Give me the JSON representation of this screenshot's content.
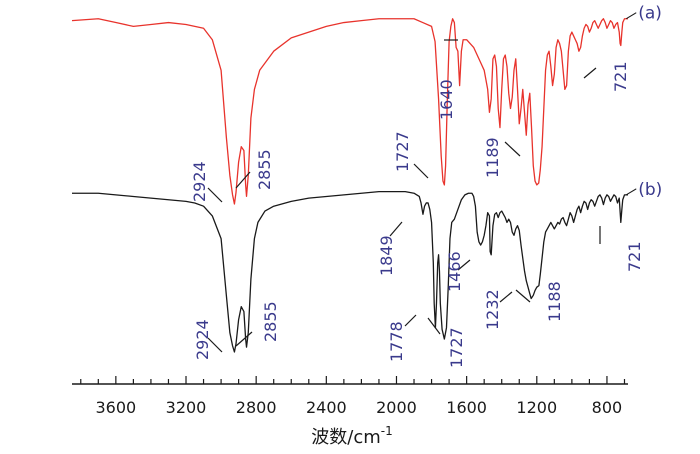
{
  "chart_data": {
    "type": "line",
    "title": "",
    "xlabel": "波数/cm",
    "xlabel_superscript": "-1",
    "ylabel": "",
    "x_reversed": true,
    "xlim": [
      3850,
      680
    ],
    "xticks": [
      3600,
      3200,
      2800,
      2400,
      2000,
      1600,
      1200,
      800
    ],
    "xtick_labels": [
      "3600",
      "3200",
      "2800",
      "2400",
      "2000",
      "1600",
      "1200",
      "800"
    ],
    "grid": false,
    "legend": "none",
    "series": [
      {
        "name": "(a)",
        "color": "#e8332c",
        "points": [
          [
            3850,
            0.96
          ],
          [
            3700,
            0.97
          ],
          [
            3600,
            0.95
          ],
          [
            3500,
            0.93
          ],
          [
            3400,
            0.94
          ],
          [
            3300,
            0.95
          ],
          [
            3200,
            0.94
          ],
          [
            3100,
            0.92
          ],
          [
            3050,
            0.86
          ],
          [
            3000,
            0.7
          ],
          [
            2970,
            0.35
          ],
          [
            2950,
            0.15
          ],
          [
            2935,
            0.05
          ],
          [
            2924,
            0.0
          ],
          [
            2915,
            0.06
          ],
          [
            2900,
            0.22
          ],
          [
            2885,
            0.3
          ],
          [
            2870,
            0.28
          ],
          [
            2860,
            0.1
          ],
          [
            2855,
            0.04
          ],
          [
            2845,
            0.15
          ],
          [
            2830,
            0.45
          ],
          [
            2810,
            0.6
          ],
          [
            2780,
            0.7
          ],
          [
            2700,
            0.8
          ],
          [
            2600,
            0.87
          ],
          [
            2500,
            0.9
          ],
          [
            2400,
            0.93
          ],
          [
            2300,
            0.95
          ],
          [
            2200,
            0.96
          ],
          [
            2100,
            0.97
          ],
          [
            2000,
            0.97
          ],
          [
            1900,
            0.97
          ],
          [
            1850,
            0.95
          ],
          [
            1800,
            0.93
          ],
          [
            1780,
            0.85
          ],
          [
            1760,
            0.55
          ],
          [
            1745,
            0.25
          ],
          [
            1735,
            0.12
          ],
          [
            1727,
            0.1
          ],
          [
            1720,
            0.2
          ],
          [
            1710,
            0.55
          ],
          [
            1700,
            0.85
          ],
          [
            1690,
            0.93
          ],
          [
            1680,
            0.97
          ],
          [
            1670,
            0.95
          ],
          [
            1660,
            0.82
          ],
          [
            1650,
            0.8
          ],
          [
            1640,
            0.62
          ],
          [
            1630,
            0.8
          ],
          [
            1620,
            0.86
          ],
          [
            1600,
            0.86
          ],
          [
            1580,
            0.84
          ],
          [
            1560,
            0.82
          ],
          [
            1540,
            0.78
          ],
          [
            1520,
            0.74
          ],
          [
            1500,
            0.7
          ],
          [
            1480,
            0.6
          ],
          [
            1470,
            0.48
          ],
          [
            1460,
            0.55
          ],
          [
            1450,
            0.76
          ],
          [
            1440,
            0.78
          ],
          [
            1430,
            0.72
          ],
          [
            1420,
            0.5
          ],
          [
            1410,
            0.4
          ],
          [
            1400,
            0.6
          ],
          [
            1390,
            0.76
          ],
          [
            1380,
            0.78
          ],
          [
            1370,
            0.72
          ],
          [
            1360,
            0.58
          ],
          [
            1350,
            0.5
          ],
          [
            1340,
            0.56
          ],
          [
            1330,
            0.7
          ],
          [
            1320,
            0.76
          ],
          [
            1310,
            0.6
          ],
          [
            1300,
            0.42
          ],
          [
            1290,
            0.5
          ],
          [
            1280,
            0.6
          ],
          [
            1270,
            0.48
          ],
          [
            1260,
            0.36
          ],
          [
            1250,
            0.52
          ],
          [
            1240,
            0.58
          ],
          [
            1230,
            0.4
          ],
          [
            1220,
            0.2
          ],
          [
            1210,
            0.12
          ],
          [
            1200,
            0.1
          ],
          [
            1189,
            0.11
          ],
          [
            1180,
            0.18
          ],
          [
            1170,
            0.3
          ],
          [
            1160,
            0.5
          ],
          [
            1150,
            0.7
          ],
          [
            1140,
            0.78
          ],
          [
            1130,
            0.8
          ],
          [
            1120,
            0.72
          ],
          [
            1110,
            0.62
          ],
          [
            1100,
            0.68
          ],
          [
            1090,
            0.82
          ],
          [
            1080,
            0.86
          ],
          [
            1070,
            0.84
          ],
          [
            1060,
            0.8
          ],
          [
            1050,
            0.7
          ],
          [
            1040,
            0.6
          ],
          [
            1030,
            0.62
          ],
          [
            1020,
            0.8
          ],
          [
            1010,
            0.88
          ],
          [
            1000,
            0.9
          ],
          [
            990,
            0.88
          ],
          [
            980,
            0.86
          ],
          [
            970,
            0.84
          ],
          [
            960,
            0.8
          ],
          [
            950,
            0.82
          ],
          [
            940,
            0.88
          ],
          [
            930,
            0.92
          ],
          [
            920,
            0.94
          ],
          [
            910,
            0.93
          ],
          [
            900,
            0.9
          ],
          [
            890,
            0.92
          ],
          [
            880,
            0.95
          ],
          [
            870,
            0.96
          ],
          [
            860,
            0.94
          ],
          [
            850,
            0.92
          ],
          [
            840,
            0.94
          ],
          [
            830,
            0.96
          ],
          [
            820,
            0.97
          ],
          [
            810,
            0.95
          ],
          [
            800,
            0.92
          ],
          [
            790,
            0.94
          ],
          [
            780,
            0.96
          ],
          [
            770,
            0.95
          ],
          [
            760,
            0.92
          ],
          [
            750,
            0.94
          ],
          [
            740,
            0.95
          ],
          [
            730,
            0.9
          ],
          [
            725,
            0.84
          ],
          [
            721,
            0.83
          ],
          [
            715,
            0.9
          ],
          [
            710,
            0.95
          ],
          [
            700,
            0.97
          ],
          [
            690,
            0.97
          ],
          [
            680,
            0.97
          ]
        ]
      },
      {
        "name": "(b)",
        "color": "#1a1a1a",
        "points": [
          [
            3850,
            0.98
          ],
          [
            3700,
            0.98
          ],
          [
            3600,
            0.97
          ],
          [
            3500,
            0.96
          ],
          [
            3400,
            0.95
          ],
          [
            3300,
            0.94
          ],
          [
            3200,
            0.93
          ],
          [
            3150,
            0.92
          ],
          [
            3100,
            0.9
          ],
          [
            3050,
            0.84
          ],
          [
            3000,
            0.7
          ],
          [
            2970,
            0.35
          ],
          [
            2950,
            0.12
          ],
          [
            2935,
            0.04
          ],
          [
            2924,
            0.0
          ],
          [
            2915,
            0.05
          ],
          [
            2900,
            0.2
          ],
          [
            2885,
            0.28
          ],
          [
            2870,
            0.25
          ],
          [
            2860,
            0.08
          ],
          [
            2855,
            0.03
          ],
          [
            2845,
            0.12
          ],
          [
            2830,
            0.45
          ],
          [
            2810,
            0.7
          ],
          [
            2790,
            0.8
          ],
          [
            2750,
            0.87
          ],
          [
            2700,
            0.9
          ],
          [
            2600,
            0.93
          ],
          [
            2500,
            0.95
          ],
          [
            2400,
            0.96
          ],
          [
            2300,
            0.97
          ],
          [
            2200,
            0.98
          ],
          [
            2100,
            0.99
          ],
          [
            2000,
            0.99
          ],
          [
            1950,
            0.99
          ],
          [
            1900,
            0.98
          ],
          [
            1870,
            0.96
          ],
          [
            1860,
            0.92
          ],
          [
            1849,
            0.85
          ],
          [
            1840,
            0.9
          ],
          [
            1830,
            0.92
          ],
          [
            1820,
            0.92
          ],
          [
            1810,
            0.88
          ],
          [
            1800,
            0.8
          ],
          [
            1790,
            0.55
          ],
          [
            1785,
            0.3
          ],
          [
            1778,
            0.15
          ],
          [
            1772,
            0.3
          ],
          [
            1765,
            0.55
          ],
          [
            1760,
            0.6
          ],
          [
            1755,
            0.5
          ],
          [
            1750,
            0.3
          ],
          [
            1740,
            0.14
          ],
          [
            1727,
            0.08
          ],
          [
            1715,
            0.15
          ],
          [
            1705,
            0.4
          ],
          [
            1695,
            0.7
          ],
          [
            1685,
            0.8
          ],
          [
            1670,
            0.82
          ],
          [
            1650,
            0.88
          ],
          [
            1630,
            0.94
          ],
          [
            1610,
            0.97
          ],
          [
            1590,
            0.98
          ],
          [
            1570,
            0.98
          ],
          [
            1560,
            0.96
          ],
          [
            1550,
            0.9
          ],
          [
            1545,
            0.82
          ],
          [
            1540,
            0.74
          ],
          [
            1530,
            0.68
          ],
          [
            1520,
            0.66
          ],
          [
            1510,
            0.68
          ],
          [
            1500,
            0.72
          ],
          [
            1490,
            0.78
          ],
          [
            1480,
            0.86
          ],
          [
            1470,
            0.84
          ],
          [
            1466,
            0.62
          ],
          [
            1460,
            0.6
          ],
          [
            1450,
            0.78
          ],
          [
            1440,
            0.85
          ],
          [
            1430,
            0.86
          ],
          [
            1420,
            0.83
          ],
          [
            1410,
            0.86
          ],
          [
            1400,
            0.87
          ],
          [
            1390,
            0.85
          ],
          [
            1380,
            0.83
          ],
          [
            1370,
            0.8
          ],
          [
            1360,
            0.82
          ],
          [
            1350,
            0.8
          ],
          [
            1340,
            0.74
          ],
          [
            1330,
            0.72
          ],
          [
            1320,
            0.76
          ],
          [
            1310,
            0.78
          ],
          [
            1300,
            0.75
          ],
          [
            1290,
            0.66
          ],
          [
            1280,
            0.58
          ],
          [
            1270,
            0.5
          ],
          [
            1260,
            0.44
          ],
          [
            1250,
            0.4
          ],
          [
            1240,
            0.36
          ],
          [
            1232,
            0.33
          ],
          [
            1220,
            0.35
          ],
          [
            1210,
            0.38
          ],
          [
            1200,
            0.4
          ],
          [
            1188,
            0.41
          ],
          [
            1180,
            0.48
          ],
          [
            1170,
            0.58
          ],
          [
            1160,
            0.68
          ],
          [
            1150,
            0.74
          ],
          [
            1140,
            0.76
          ],
          [
            1130,
            0.78
          ],
          [
            1120,
            0.8
          ],
          [
            1110,
            0.78
          ],
          [
            1100,
            0.76
          ],
          [
            1090,
            0.78
          ],
          [
            1080,
            0.8
          ],
          [
            1070,
            0.79
          ],
          [
            1060,
            0.82
          ],
          [
            1050,
            0.83
          ],
          [
            1040,
            0.8
          ],
          [
            1030,
            0.78
          ],
          [
            1020,
            0.82
          ],
          [
            1010,
            0.86
          ],
          [
            1000,
            0.84
          ],
          [
            990,
            0.8
          ],
          [
            980,
            0.84
          ],
          [
            970,
            0.88
          ],
          [
            960,
            0.9
          ],
          [
            950,
            0.86
          ],
          [
            940,
            0.9
          ],
          [
            930,
            0.93
          ],
          [
            920,
            0.92
          ],
          [
            910,
            0.88
          ],
          [
            900,
            0.92
          ],
          [
            890,
            0.94
          ],
          [
            880,
            0.93
          ],
          [
            870,
            0.9
          ],
          [
            860,
            0.93
          ],
          [
            850,
            0.96
          ],
          [
            840,
            0.97
          ],
          [
            830,
            0.95
          ],
          [
            820,
            0.91
          ],
          [
            810,
            0.95
          ],
          [
            800,
            0.97
          ],
          [
            790,
            0.96
          ],
          [
            780,
            0.93
          ],
          [
            770,
            0.95
          ],
          [
            760,
            0.97
          ],
          [
            750,
            0.96
          ],
          [
            740,
            0.92
          ],
          [
            730,
            0.95
          ],
          [
            721,
            0.8
          ],
          [
            715,
            0.88
          ],
          [
            710,
            0.94
          ],
          [
            700,
            0.97
          ],
          [
            690,
            0.97
          ],
          [
            680,
            0.97
          ]
        ]
      }
    ],
    "annotations": [
      {
        "series": "(a)",
        "text": "2924",
        "x": 2924
      },
      {
        "series": "(a)",
        "text": "2855",
        "x": 2855
      },
      {
        "series": "(a)",
        "text": "1727",
        "x": 1727
      },
      {
        "series": "(a)",
        "text": "1640",
        "x": 1640
      },
      {
        "series": "(a)",
        "text": "1189",
        "x": 1189
      },
      {
        "series": "(a)",
        "text": "721",
        "x": 721
      },
      {
        "series": "(b)",
        "text": "2924",
        "x": 2924
      },
      {
        "series": "(b)",
        "text": "2855",
        "x": 2855
      },
      {
        "series": "(b)",
        "text": "1849",
        "x": 1849
      },
      {
        "series": "(b)",
        "text": "1778",
        "x": 1778
      },
      {
        "series": "(b)",
        "text": "1727",
        "x": 1727
      },
      {
        "series": "(b)",
        "text": "1466",
        "x": 1466
      },
      {
        "series": "(b)",
        "text": "1232",
        "x": 1232
      },
      {
        "series": "(b)",
        "text": "1188",
        "x": 1188
      },
      {
        "series": "(b)",
        "text": "721",
        "x": 721
      }
    ]
  }
}
